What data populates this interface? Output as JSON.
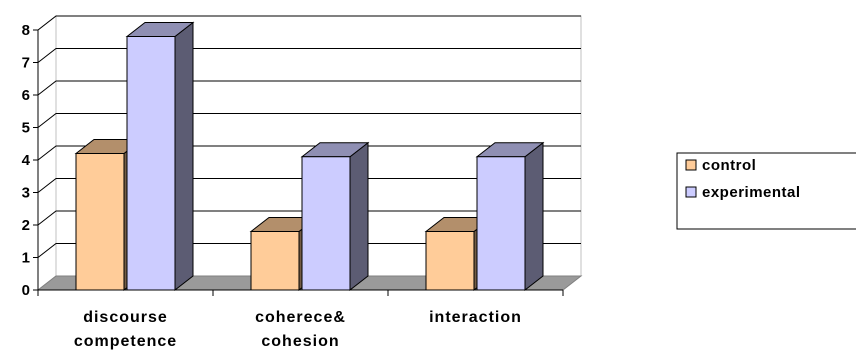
{
  "chart_data": {
    "type": "bar",
    "style": "3d-clustered-column",
    "categories": [
      [
        "discourse",
        "competence"
      ],
      [
        "coherece&",
        "cohesion"
      ],
      [
        "interaction"
      ]
    ],
    "series": [
      {
        "name": "control",
        "values": [
          4.2,
          1.8,
          1.8
        ],
        "color": "#ffcc99"
      },
      {
        "name": "experimental",
        "values": [
          7.8,
          4.1,
          4.1
        ],
        "color": "#ccccff"
      }
    ],
    "y_ticks": [
      "0",
      "1",
      "2",
      "3",
      "4",
      "5",
      "6",
      "7",
      "8"
    ],
    "ylim": [
      0,
      8
    ],
    "grid": true,
    "legend_position": "right"
  }
}
